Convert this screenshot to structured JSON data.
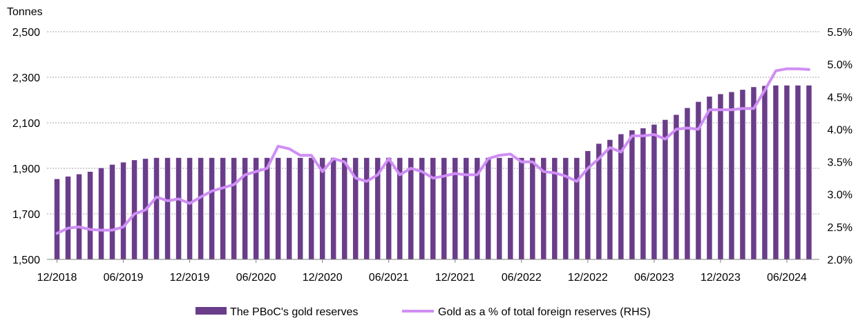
{
  "chart_data": {
    "type": "bar+line",
    "title": "",
    "left_axis_title": "Tonnes",
    "y_left": {
      "min": 1500,
      "max": 2500,
      "ticks": [
        1500,
        1700,
        1900,
        2100,
        2300,
        2500
      ],
      "tick_labels": [
        "1,500",
        "1,700",
        "1,900",
        "2,100",
        "2,300",
        "2,500"
      ]
    },
    "y_right": {
      "min": 2.0,
      "max": 5.5,
      "ticks": [
        2.0,
        2.5,
        3.0,
        3.5,
        4.0,
        4.5,
        5.0,
        5.5
      ],
      "tick_labels": [
        "2.0%",
        "2.5%",
        "3.0%",
        "3.5%",
        "4.0%",
        "4.5%",
        "5.0%",
        "5.5%"
      ]
    },
    "x_tick_labels": [
      {
        "index": 0,
        "label": "12/2018"
      },
      {
        "index": 6,
        "label": "06/2019"
      },
      {
        "index": 12,
        "label": "12/2019"
      },
      {
        "index": 18,
        "label": "06/2020"
      },
      {
        "index": 24,
        "label": "12/2020"
      },
      {
        "index": 30,
        "label": "06/2021"
      },
      {
        "index": 36,
        "label": "12/2021"
      },
      {
        "index": 42,
        "label": "06/2022"
      },
      {
        "index": 48,
        "label": "12/2022"
      },
      {
        "index": 54,
        "label": "06/2023"
      },
      {
        "index": 60,
        "label": "12/2023"
      },
      {
        "index": 66,
        "label": "06/2024"
      }
    ],
    "grid": "horizontal dotted",
    "legend_position": "bottom",
    "series": [
      {
        "name": "The PBoC's gold reserves",
        "kind": "bar",
        "axis": "left",
        "color": "#6a3d8a",
        "values": [
          1853,
          1864,
          1874,
          1885,
          1901,
          1916,
          1926,
          1936,
          1942,
          1946,
          1946,
          1946,
          1946,
          1946,
          1946,
          1946,
          1946,
          1946,
          1946,
          1946,
          1946,
          1946,
          1946,
          1946,
          1946,
          1946,
          1946,
          1946,
          1946,
          1946,
          1946,
          1946,
          1946,
          1946,
          1946,
          1946,
          1946,
          1946,
          1946,
          1946,
          1946,
          1946,
          1946,
          1946,
          1946,
          1946,
          1946,
          1946,
          1976,
          2008,
          2025,
          2050,
          2067,
          2076,
          2092,
          2113,
          2135,
          2165,
          2192,
          2215,
          2226,
          2235,
          2245,
          2257,
          2262,
          2264,
          2264,
          2264,
          2264
        ]
      },
      {
        "name": "Gold as a % of total foreign reserves (RHS)",
        "kind": "line",
        "axis": "right",
        "color": "#cf8ef5",
        "values": [
          2.4,
          2.48,
          2.5,
          2.46,
          2.45,
          2.45,
          2.5,
          2.7,
          2.76,
          2.96,
          2.9,
          2.93,
          2.86,
          2.96,
          3.05,
          3.1,
          3.15,
          3.3,
          3.35,
          3.4,
          3.74,
          3.7,
          3.6,
          3.6,
          3.35,
          3.55,
          3.5,
          3.25,
          3.2,
          3.3,
          3.55,
          3.3,
          3.4,
          3.35,
          3.25,
          3.28,
          3.32,
          3.3,
          3.3,
          3.55,
          3.6,
          3.62,
          3.5,
          3.5,
          3.35,
          3.33,
          3.28,
          3.2,
          3.4,
          3.55,
          3.72,
          3.65,
          3.9,
          3.9,
          3.92,
          3.85,
          4.0,
          4.02,
          4.0,
          4.3,
          4.3,
          4.3,
          4.32,
          4.32,
          4.6,
          4.9,
          4.93,
          4.93,
          4.92
        ]
      }
    ]
  }
}
